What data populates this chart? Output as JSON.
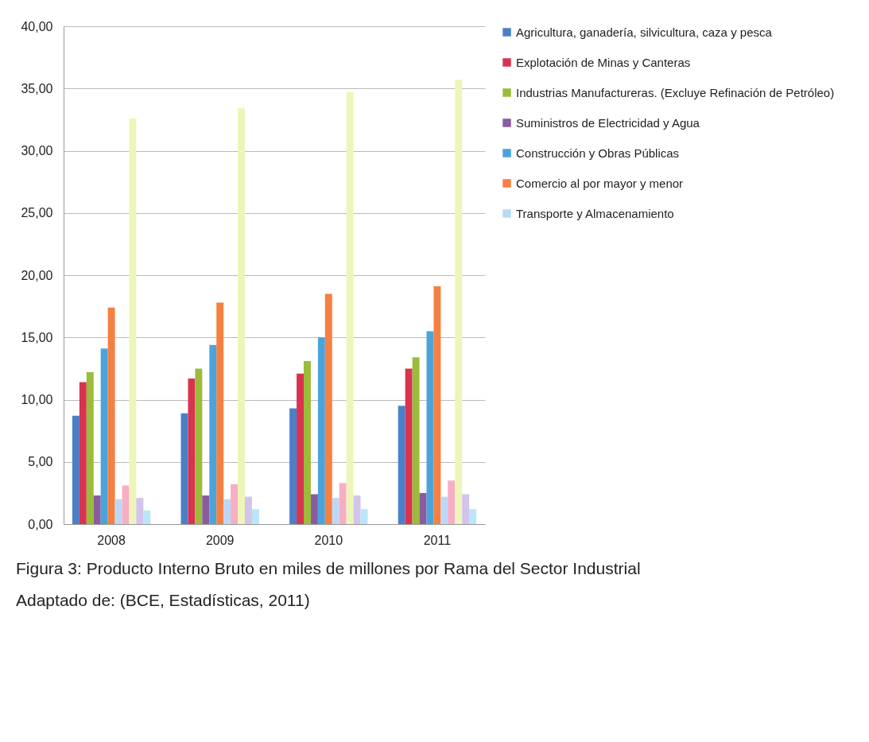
{
  "chart_data": {
    "type": "bar",
    "categories": [
      "2008",
      "2009",
      "2010",
      "2011"
    ],
    "series": [
      {
        "name": "Agricultura, ganadería, silvicultura, caza y pesca",
        "color": "#4a7fc8",
        "values": [
          8.7,
          8.9,
          9.3,
          9.5
        ]
      },
      {
        "name": "Explotación de Minas y Canteras",
        "color": "#d93350",
        "values": [
          11.4,
          11.7,
          12.1,
          12.5
        ]
      },
      {
        "name": "Industrias Manufactureras. (Excluye Refinación de Petróleo)",
        "color": "#9bbb3b",
        "values": [
          12.2,
          12.5,
          13.1,
          13.4
        ]
      },
      {
        "name": "Suministros de Electricidad y Agua",
        "color": "#8a5c9e",
        "values": [
          2.3,
          2.3,
          2.4,
          2.5
        ]
      },
      {
        "name": "Construcción y Obras Públicas",
        "color": "#4ba3dc",
        "values": [
          14.1,
          14.4,
          15.0,
          15.5
        ]
      },
      {
        "name": "Comercio al por mayor y menor",
        "color": "#f58042",
        "values": [
          17.4,
          17.8,
          18.5,
          19.1
        ]
      },
      {
        "name": "Transporte y Almacenamiento",
        "color": "#bcd8f5",
        "values": [
          2.0,
          2.0,
          2.1,
          2.2
        ]
      },
      {
        "color": "#f6aec4",
        "values": [
          3.1,
          3.2,
          3.3,
          3.5
        ]
      },
      {
        "color": "#eef5b8",
        "values": [
          32.6,
          33.4,
          34.7,
          35.7
        ]
      },
      {
        "color": "#d3c4ec",
        "values": [
          2.1,
          2.2,
          2.3,
          2.4
        ]
      },
      {
        "color": "#b9e6f8",
        "values": [
          1.1,
          1.2,
          1.2,
          1.2
        ]
      }
    ],
    "ylim": [
      0,
      40
    ],
    "yticks": [
      {
        "value": 0,
        "label": "0,00"
      },
      {
        "value": 5,
        "label": "5,00"
      },
      {
        "value": 10,
        "label": "10,00"
      },
      {
        "value": 15,
        "label": "15,00"
      },
      {
        "value": 20,
        "label": "20,00"
      },
      {
        "value": 25,
        "label": "25,00"
      },
      {
        "value": 30,
        "label": "30,00"
      },
      {
        "value": 35,
        "label": "35,00"
      },
      {
        "value": 40,
        "label": "40,00"
      }
    ],
    "grid": "y",
    "legend": "right",
    "annotations": [
      "Figura 3: Producto Interno Bruto  en miles de millones por Rama del Sector Industrial",
      "Adaptado de: (BCE, Estadísticas, 2011)"
    ]
  }
}
